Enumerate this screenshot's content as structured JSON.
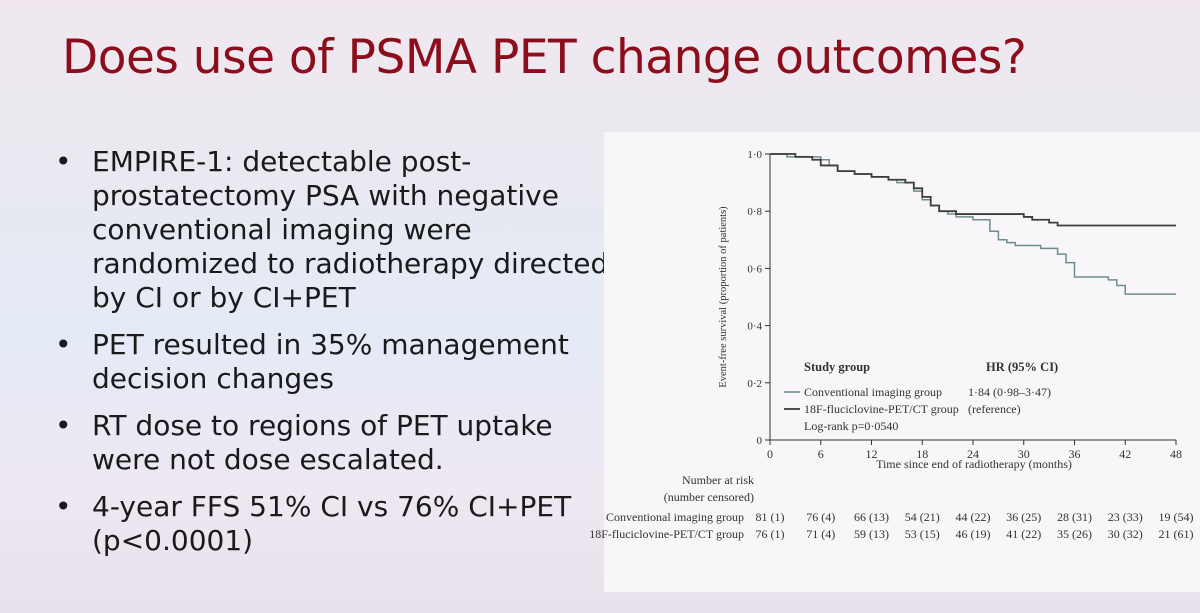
{
  "slide": {
    "title": "Does use of PSMA PET change outcomes?",
    "bullets": [
      "EMPIRE-1: detectable post-prostatectomy PSA with negative conventional imaging were randomized to radiotherapy directed by CI or by CI+PET",
      "PET resulted in 35% management decision changes",
      "RT dose to regions of PET uptake were not dose escalated.",
      "4-year FFS 51% CI vs 76% CI+PET (p<0.0001)"
    ]
  },
  "chart_data": {
    "type": "line",
    "xlabel": "Time since end of radiotherapy (months)",
    "ylabel": "Event-free survival (proportion of patients)",
    "xlim": [
      0,
      48
    ],
    "ylim": [
      0,
      1.0
    ],
    "xticks": [
      "0",
      "6",
      "12",
      "18",
      "24",
      "30",
      "36",
      "42",
      "48"
    ],
    "yticks": [
      "0",
      "0·2",
      "0·4",
      "0·6",
      "0·8",
      "1·0"
    ],
    "legend": {
      "header_group": "Study group",
      "header_hr": "HR (95% CI)",
      "entries": [
        {
          "label": "Conventional imaging group",
          "hr": "1·84 (0·98–3·47)"
        },
        {
          "label": "18F-fluciclovine-PET/CT group",
          "hr": "(reference)"
        }
      ],
      "logrank": "Log-rank p=0·0540"
    },
    "series": [
      {
        "name": "Conventional imaging group",
        "color": "#6e8e8a",
        "x": [
          0,
          1,
          2,
          4,
          6,
          7,
          8,
          10,
          12,
          14,
          15,
          17,
          18,
          19,
          20,
          21,
          22,
          24,
          26,
          27,
          28,
          29,
          31,
          32,
          34,
          35,
          36,
          38,
          40,
          41,
          42,
          48
        ],
        "y": [
          1.0,
          1.0,
          0.99,
          0.99,
          0.98,
          0.96,
          0.94,
          0.93,
          0.92,
          0.91,
          0.9,
          0.87,
          0.84,
          0.82,
          0.8,
          0.79,
          0.78,
          0.77,
          0.73,
          0.7,
          0.69,
          0.68,
          0.68,
          0.67,
          0.65,
          0.62,
          0.57,
          0.57,
          0.56,
          0.54,
          0.51,
          0.51
        ]
      },
      {
        "name": "18F-fluciclovine-PET/CT group",
        "color": "#3d3d3d",
        "x": [
          0,
          1,
          3,
          5,
          6,
          8,
          10,
          12,
          14,
          16,
          17,
          18,
          19,
          20,
          22,
          24,
          26,
          28,
          30,
          31,
          32,
          33,
          34,
          36,
          48
        ],
        "y": [
          1.0,
          1.0,
          0.99,
          0.98,
          0.96,
          0.94,
          0.93,
          0.92,
          0.91,
          0.9,
          0.88,
          0.85,
          0.82,
          0.8,
          0.79,
          0.79,
          0.79,
          0.79,
          0.78,
          0.77,
          0.77,
          0.76,
          0.75,
          0.75,
          0.75
        ]
      }
    ],
    "risk_table": {
      "title_line1": "Number at risk",
      "title_line2": "(number censored)",
      "rows": [
        {
          "label": "Conventional imaging group",
          "values": [
            "81 (1)",
            "76 (4)",
            "66 (13)",
            "54 (21)",
            "44 (22)",
            "36 (25)",
            "28 (31)",
            "23 (33)",
            "19 (54)"
          ]
        },
        {
          "label": "18F-fluciclovine-PET/CT group",
          "values": [
            "76 (1)",
            "71 (4)",
            "59 (13)",
            "53 (15)",
            "46 (19)",
            "41 (22)",
            "35 (26)",
            "30 (32)",
            "21 (61)"
          ]
        }
      ]
    }
  }
}
